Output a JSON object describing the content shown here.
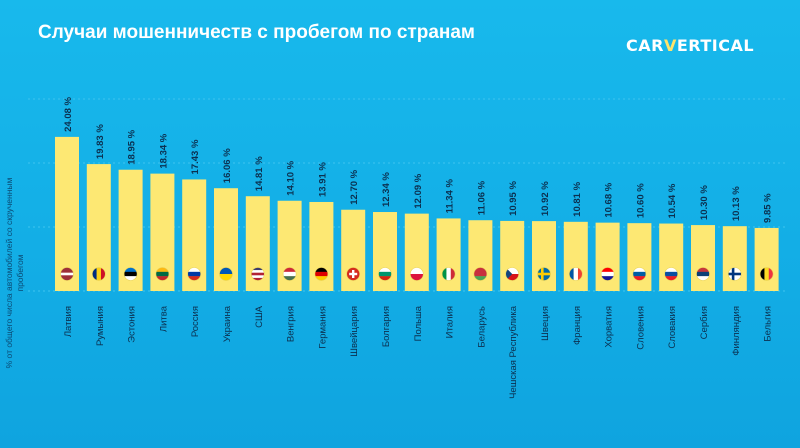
{
  "header": {
    "title": "Случаи мошенничеств с пробегом по странам",
    "logo_left": "CAR",
    "logo_v": "V",
    "logo_right": "ERTICAL"
  },
  "chart_data": {
    "type": "bar",
    "title": "Случаи мошенничеств с пробегом по странам",
    "ylabel": "% от общего числа автомобилей со скрученным пробегом",
    "xlabel": "",
    "ylim": [
      0,
      30
    ],
    "grid": true,
    "categories": [
      "Латвия",
      "Румыния",
      "Эстония",
      "Литва",
      "Россия",
      "Украина",
      "США",
      "Венгрия",
      "Германия",
      "Швейцария",
      "Болгария",
      "Польша",
      "Италия",
      "Беларусь",
      "Чешская Республика",
      "Швеция",
      "Франция",
      "Хорватия",
      "Словения",
      "Словакия",
      "Сербия",
      "Финляндия",
      "Бельгия"
    ],
    "values": [
      24.08,
      19.83,
      18.95,
      18.34,
      17.43,
      16.06,
      14.81,
      14.1,
      13.91,
      12.7,
      12.34,
      12.09,
      11.34,
      11.06,
      10.95,
      10.92,
      10.81,
      10.68,
      10.6,
      10.54,
      10.3,
      10.13,
      9.85
    ],
    "labels": [
      "24.08 %",
      "19.83 %",
      "18.95 %",
      "18.34 %",
      "17.43 %",
      "16.06 %",
      "14.81 %",
      "14.10 %",
      "13.91 %",
      "12.70 %",
      "12.34 %",
      "12.09 %",
      "11.34 %",
      "11.06 %",
      "10.95 %",
      "10.92 %",
      "10.81 %",
      "10.68 %",
      "10.60 %",
      "10.54 %",
      "10.30 %",
      "10.13 %",
      "9.85 %"
    ],
    "flags": [
      "latvia",
      "romania",
      "estonia",
      "lithuania",
      "russia",
      "ukraine",
      "usa",
      "hungary",
      "germany",
      "switzerland",
      "bulgaria",
      "poland",
      "italy",
      "belarus",
      "czechia",
      "sweden",
      "france",
      "croatia",
      "slovenia",
      "slovakia",
      "serbia",
      "finland",
      "belgium"
    ],
    "colors": {
      "bar": "#fde873",
      "background": "#16b4ea",
      "text": "#0b2f4f",
      "grid": "#3fc4ef"
    }
  }
}
